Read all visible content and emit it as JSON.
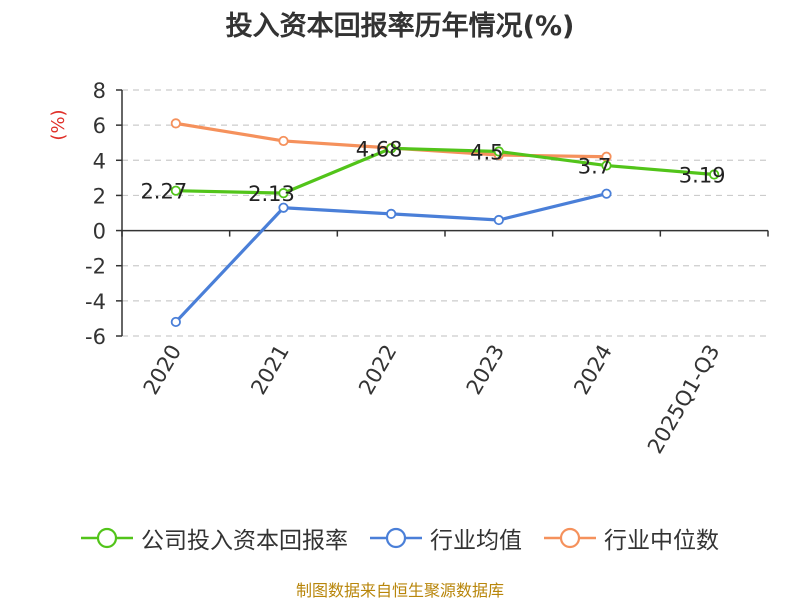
{
  "chart_data": {
    "type": "line",
    "title": "投入资本回报率历年情况(%)",
    "ylabel": "(%)",
    "categories": [
      "2020",
      "2021",
      "2022",
      "2023",
      "2024",
      "2025Q1-Q3"
    ],
    "ylim": [
      -6,
      8
    ],
    "yticks": [
      8,
      6,
      4,
      2,
      0,
      -2,
      -4,
      -6
    ],
    "grid": true,
    "legend_position": "bottom",
    "series": [
      {
        "name": "公司投入资本回报率",
        "color": "#52c41a",
        "values": [
          2.27,
          2.13,
          4.68,
          4.5,
          3.7,
          3.19
        ],
        "labels": [
          "2.27",
          "2.13",
          "4.68",
          "4.5",
          "3.7",
          "3.19"
        ]
      },
      {
        "name": "行业均值",
        "color": "#4a7fd8",
        "values": [
          -5.2,
          1.3,
          0.95,
          0.6,
          2.1,
          null
        ]
      },
      {
        "name": "行业中位数",
        "color": "#f5915c",
        "values": [
          6.1,
          5.1,
          4.7,
          4.3,
          4.2,
          null
        ]
      }
    ]
  },
  "source": "制图数据来自恒生聚源数据库"
}
